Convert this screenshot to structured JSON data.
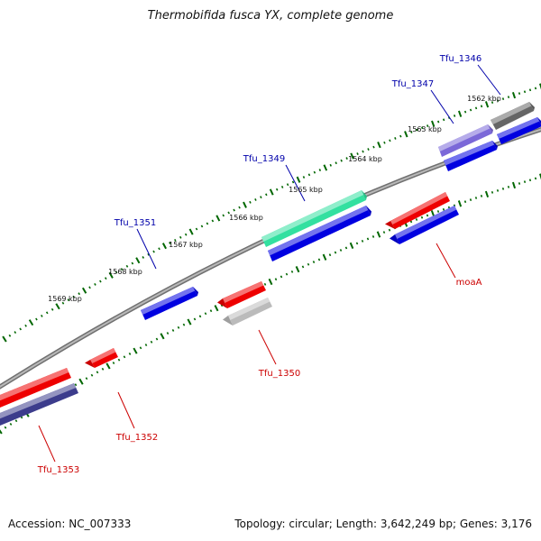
{
  "title": "Thermobifida fusca YX, complete genome",
  "footer": {
    "accession": "Accession: NC_007333",
    "stats": "Topology: circular; Length: 3,642,249 bp; Genes: 3,176"
  },
  "scale_labels": [
    "1562 kbp",
    "1563 kbp",
    "1564 kbp",
    "1565 kbp",
    "1566 kbp",
    "1567 kbp",
    "1568 kbp",
    "1569 kbp"
  ],
  "genes": [
    {
      "label": "Tfu_1346",
      "strand": "forward",
      "color": "#666666"
    },
    {
      "label": "Tfu_1347",
      "strand": "forward",
      "color": "#7b68d8"
    },
    {
      "label": "Tfu_1349",
      "strand": "forward",
      "color": "#33e0a0"
    },
    {
      "label": "Tfu_1351",
      "strand": "forward",
      "color": "#0000e0"
    },
    {
      "label": "moaA",
      "strand": "reverse",
      "color": "#ee0000"
    },
    {
      "label": "Tfu_1350",
      "strand": "reverse",
      "color": "#bbbbbb"
    },
    {
      "label": "Tfu_1352",
      "strand": "reverse",
      "color": "#ee0000"
    },
    {
      "label": "Tfu_1353",
      "strand": "reverse",
      "color": "#3c3c8c"
    }
  ],
  "colors": {
    "forward_label": "#0000aa",
    "reverse_label": "#cc0000",
    "cds_forward": "#0000e0",
    "cds_reverse": "#ee0000",
    "tick": "#006600",
    "backbone": "#888888"
  }
}
